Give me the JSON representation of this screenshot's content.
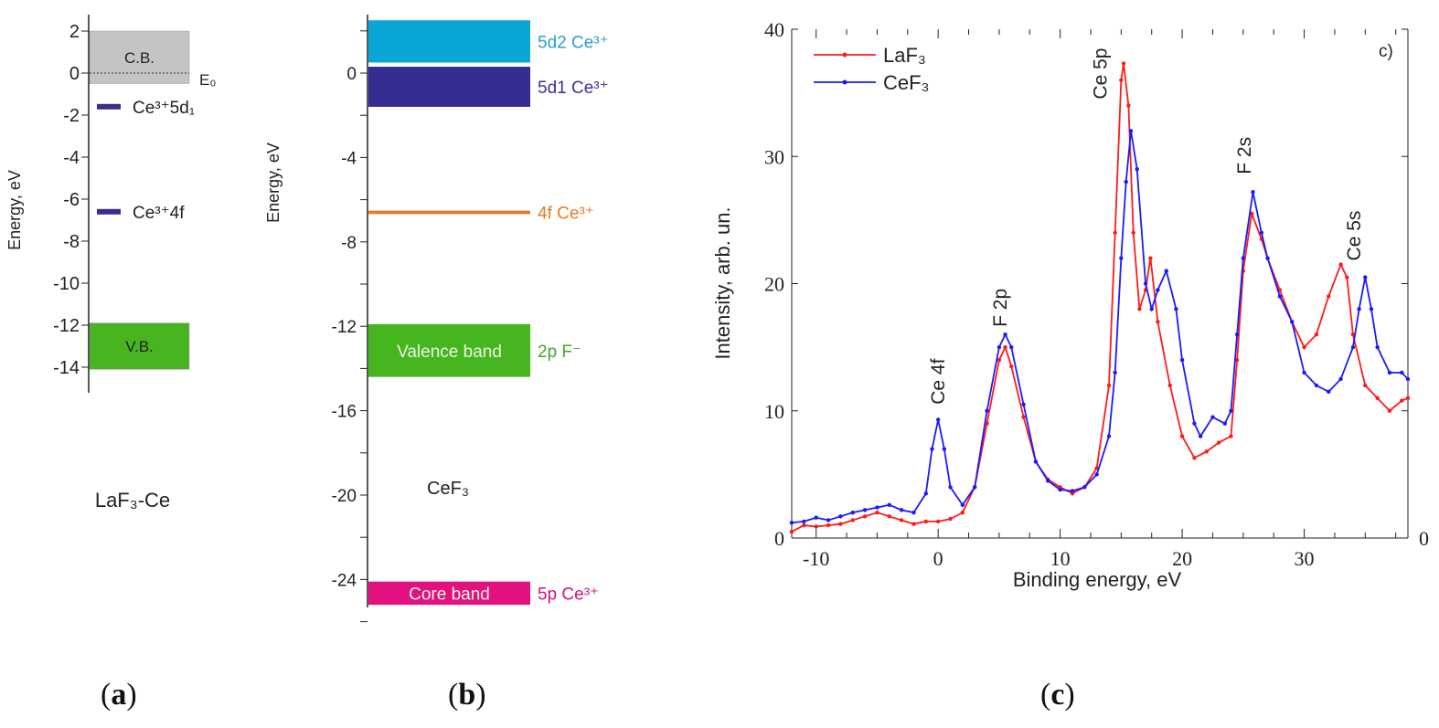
{
  "panel_labels": {
    "a": "a",
    "b": "b",
    "c": "c"
  },
  "chart_data": [
    {
      "type": "bar",
      "panel": "a",
      "ylabel": "Energy, eV",
      "ylim": [
        -15,
        2.7
      ],
      "yticks": [
        2,
        0,
        -2,
        -4,
        -6,
        -8,
        -10,
        -12,
        -14
      ],
      "material_label": "LaF₃-Ce",
      "reference_line": {
        "label": "E₀",
        "value": 0
      },
      "bands": [
        {
          "label": "C.B.",
          "from": -0.5,
          "to": 2,
          "color": "#c4c4c4"
        },
        {
          "label": "V.B.",
          "from": -14.1,
          "to": -11.9,
          "color": "#48b520"
        }
      ],
      "levels": [
        {
          "label": "Ce³⁺5d₁",
          "value": -1.6,
          "color": "#3a2e8c"
        },
        {
          "label": "Ce³⁺4f",
          "value": -6.6,
          "color": "#3a2e8c"
        }
      ]
    },
    {
      "type": "bar",
      "panel": "b",
      "ylabel": "Energy, eV",
      "ylim": [
        -26,
        2.7
      ],
      "yticks": [
        0,
        -4,
        -8,
        -12,
        -16,
        -20,
        -24
      ],
      "material_label": "CeF₃",
      "bands": [
        {
          "inner": "",
          "label": "5d2 Ce³⁺",
          "from": 0.5,
          "to": 2.5,
          "color": "#0aa6d6",
          "label_color": "#2a9fd0"
        },
        {
          "inner": "",
          "label": "5d1 Ce³⁺",
          "from": -1.6,
          "to": 0.3,
          "color": "#352d91",
          "label_color": "#3b3290"
        },
        {
          "inner": "",
          "label": "4f Ce³⁺",
          "from": -6.68,
          "to": -6.52,
          "color": "#e97a22",
          "label_color": "#e97a22"
        },
        {
          "inner": "Valence band",
          "label": "2p F⁻",
          "from": -14.4,
          "to": -11.9,
          "color": "#47b520",
          "label_color": "#47a52a"
        },
        {
          "inner": "Core band",
          "label": "5p Ce³⁺",
          "from": -25.2,
          "to": -24.1,
          "color": "#e2117f",
          "label_color": "#d0127a"
        }
      ]
    },
    {
      "type": "line",
      "panel": "c",
      "xlabel": "Binding energy, eV",
      "ylabel": "Intensity, arb. un.",
      "xlim": [
        -12,
        38.5
      ],
      "ylim": [
        0,
        40
      ],
      "xticks": [
        -10,
        0,
        10,
        20,
        30
      ],
      "yticks": [
        0,
        10,
        20,
        30,
        40
      ],
      "right_axis_label": "0",
      "corner_label": "c)",
      "legend": "top-left",
      "grid": false,
      "annotations": [
        {
          "text": "Ce 4f",
          "x": 0.5,
          "y": 10.5
        },
        {
          "text": "F 2p",
          "x": 5.6,
          "y": 16.6
        },
        {
          "text": "Ce 5p",
          "x": 13.8,
          "y": 34.5
        },
        {
          "text": "F 2s",
          "x": 25.6,
          "y": 28.6
        },
        {
          "text": "Ce 5s",
          "x": 34.6,
          "y": 21.8
        }
      ],
      "series": [
        {
          "name": "LaF₃",
          "color": "#ff1a1a",
          "x": [
            -12,
            -11,
            -10,
            -9,
            -8,
            -7,
            -6,
            -5,
            -4,
            -3,
            -2,
            -1,
            0,
            1,
            2,
            3,
            4,
            5,
            5.5,
            6,
            7,
            8,
            9,
            10,
            11,
            12,
            13,
            14,
            14.5,
            15,
            15.2,
            15.6,
            16,
            16.5,
            17,
            17.4,
            18,
            19,
            20,
            21,
            22,
            23,
            24,
            24.5,
            25,
            25.7,
            26.5,
            27,
            28,
            29,
            30,
            31,
            32,
            33,
            33.5,
            34,
            35,
            36,
            37,
            38,
            38.5
          ],
          "y": [
            0.5,
            1.0,
            0.9,
            1.0,
            1.1,
            1.4,
            1.7,
            2.0,
            1.7,
            1.4,
            1.1,
            1.3,
            1.3,
            1.5,
            2.0,
            4.0,
            9.0,
            14.0,
            15.0,
            13.5,
            9.5,
            6.0,
            4.6,
            4.0,
            3.5,
            4.0,
            5.5,
            12,
            24,
            36,
            37.3,
            34,
            24,
            18,
            19.5,
            22,
            17,
            12,
            8,
            6.3,
            6.8,
            7.5,
            8,
            14,
            21,
            25.5,
            23.5,
            22,
            19.5,
            17,
            15,
            16,
            19,
            21.5,
            20.5,
            16,
            12,
            11,
            10,
            10.8,
            11
          ]
        },
        {
          "name": "CeF₃",
          "color": "#1a1aff",
          "x": [
            -12,
            -11,
            -10,
            -9,
            -8,
            -7,
            -6,
            -5,
            -4,
            -3,
            -2,
            -1,
            -0.5,
            0,
            0.5,
            1,
            2,
            3,
            4,
            5,
            5.5,
            6,
            7,
            8,
            9,
            10,
            11,
            12,
            13,
            14,
            14.5,
            15,
            15.4,
            15.8,
            16.3,
            17,
            17.5,
            18,
            18.7,
            19.5,
            20,
            21,
            21.5,
            22.5,
            23.5,
            24,
            24.5,
            25,
            25.8,
            26.5,
            27,
            28,
            29,
            30,
            31,
            32,
            33,
            34,
            34.5,
            35,
            35.5,
            36,
            37,
            38,
            38.5
          ],
          "y": [
            1.2,
            1.3,
            1.6,
            1.4,
            1.7,
            2.0,
            2.2,
            2.4,
            2.6,
            2.2,
            2.0,
            3.5,
            7,
            9.3,
            7,
            4.0,
            2.6,
            4.0,
            10,
            15,
            16,
            15,
            10.5,
            6.0,
            4.5,
            3.8,
            3.7,
            4.0,
            5.0,
            8,
            13,
            22,
            28,
            32,
            29,
            20,
            18,
            19.5,
            21,
            18,
            14,
            9,
            8,
            9.5,
            9,
            10,
            16,
            22,
            27.2,
            24,
            22,
            19,
            17,
            13,
            12,
            11.5,
            12.5,
            15,
            18,
            20.5,
            18,
            15,
            13,
            13,
            12.5
          ]
        }
      ]
    }
  ]
}
